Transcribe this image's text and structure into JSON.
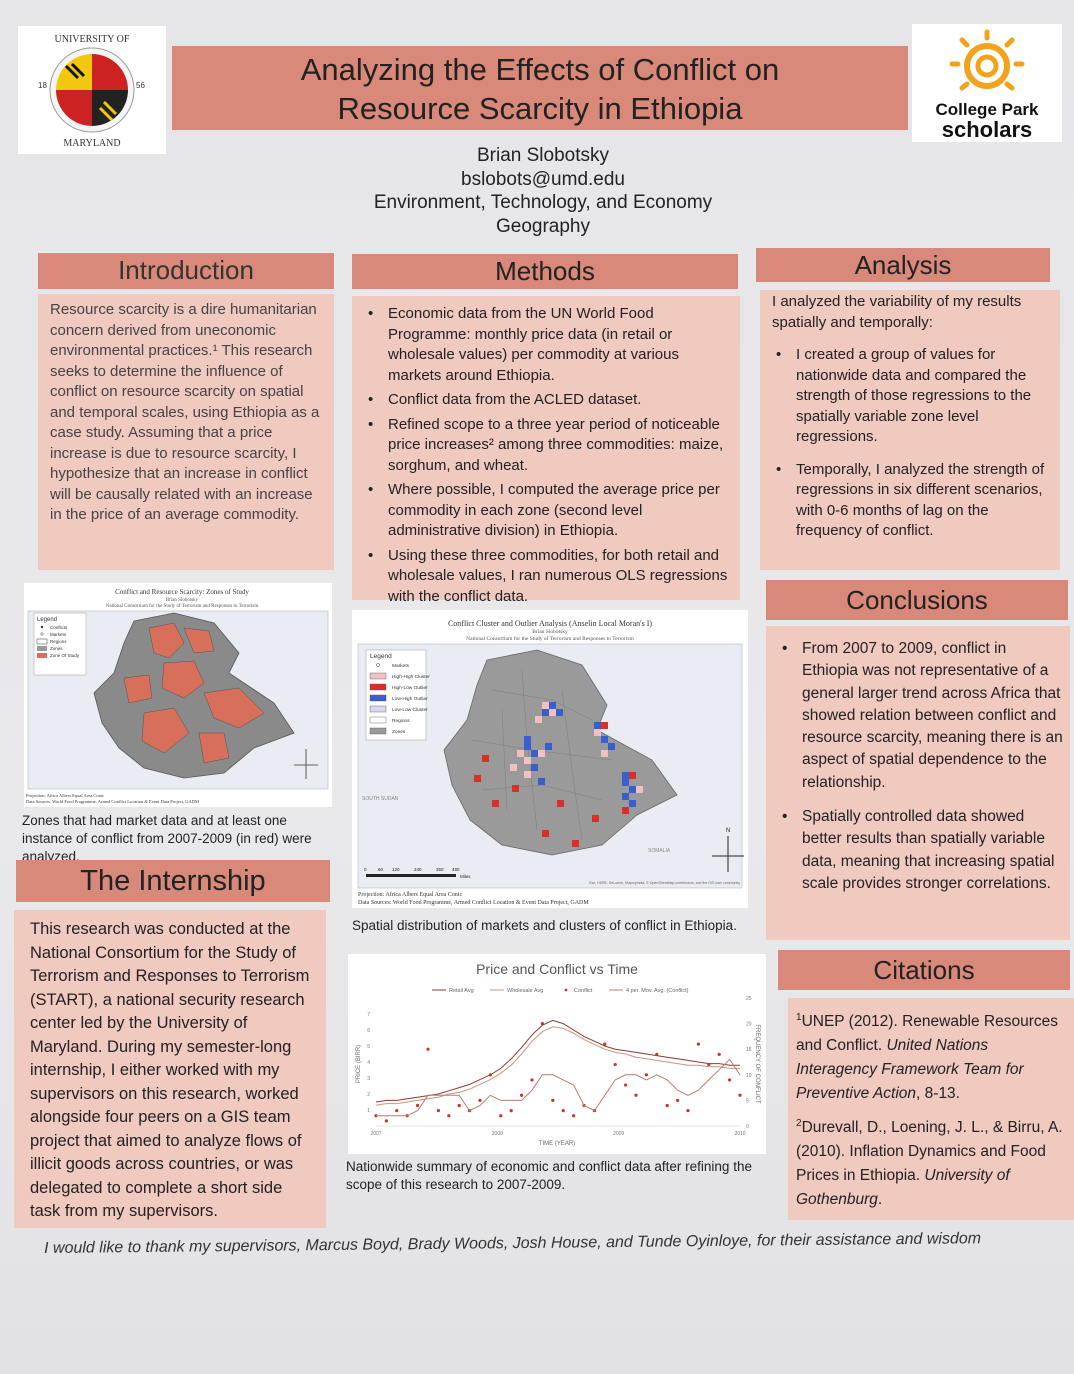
{
  "header": {
    "title_line1": "Analyzing the Effects of Conflict on",
    "title_line2": "Resource Scarcity in Ethiopia",
    "author": "Brian Slobotsky",
    "email": "bslobots@umd.edu",
    "program": "Environment, Technology, and Economy",
    "department": "Geography",
    "umd_logo": {
      "top": "UNIVERSITY OF",
      "bottom": "MARYLAND",
      "year_left": "18",
      "year_right": "56"
    },
    "scholars_logo": {
      "line1": "College Park",
      "line2": "scholars"
    }
  },
  "introduction": {
    "title": "Introduction",
    "text": "Resource scarcity is a dire humanitarian concern derived from uneconomic environmental practices.¹ This research seeks to determine the influence of conflict on resource scarcity on spatial and temporal scales, using Ethiopia as a case study. Assuming that a price increase is due to resource scarcity, I hypothesize that an increase in conflict will be causally related with an increase in the price of an average commodity.",
    "map_title": "Conflict and Resource Scarcity: Zones of Study",
    "map_subtitle": "Brian Slobotsky",
    "map_org": "National Consortium for the Study of Terrorism and Responses to Terrorism",
    "legend_title": "Legend",
    "legend_items": [
      "Conflicts",
      "Markets",
      "Regions",
      "Zones",
      "Zone Of Study"
    ],
    "projection": "Projection: Africa Albers Equal Area Conic",
    "sources": "Data Sources: World Food Programme, Armed Conflict Location & Event Data Project, GADM",
    "caption": "Zones that had market data and at least one instance of conflict from 2007-2009 (in red) were analyzed."
  },
  "internship": {
    "title": "The Internship",
    "text": "This research was conducted at the National Consortium for the Study of Terrorism and Responses to Terrorism (START), a national security research center led by the University of Maryland. During my semester-long internship, I either worked with my supervisors on this research, worked alongside four peers on a GIS team project that aimed to analyze flows of illicit goods across countries, or was delegated to complete a short side task from my supervisors."
  },
  "methods": {
    "title": "Methods",
    "bullets": [
      "Economic data from the UN World Food Programme: monthly price data (in retail or wholesale values) per commodity at various markets around Ethiopia.",
      "Conflict data from the ACLED dataset.",
      "Refined scope to a three year period of noticeable price increases² among three commodities: maize, sorghum, and wheat.",
      "Where possible, I computed the average price per commodity in each zone (second level administrative division) in Ethiopia.",
      "Using these three commodities, for both retail and wholesale values, I ran numerous OLS regressions with the conflict data."
    ],
    "map_title": "Conflict Cluster and Outlier Analysis (Anselin Local Moran's I)",
    "map_subtitle": "Brian Slobotsky",
    "map_org": "National Consortium for the Study of Terrorism and Responses to Terrorism",
    "legend_title": "Legend",
    "legend_items": [
      "Markets",
      "High-High Cluster",
      "High-Low Outlier",
      "Low-High Outlier",
      "Low-Low Cluster",
      "Regions",
      "Zones"
    ],
    "legend_colors": [
      "#ffffff",
      "#f2c0c0",
      "#d73027",
      "#3a5fcd",
      "#d9d9ee",
      "#ffffff",
      "#9a9a9a"
    ],
    "south_sudan": "SOUTH SUDAN",
    "somalia": "SOMALIA",
    "scale_labels": [
      "0",
      "60",
      "120",
      "240",
      "360",
      "480"
    ],
    "scale_unit": "Miles",
    "projection": "Projection: Africa Albers Equal Area Conic",
    "sources": "Data Sources: World Food Programme, Armed Conflict Location & Event Data Project, GADM",
    "credits": "Esri, HERE, DeLorme, MapmyIndia, © OpenStreetMap contributors, and the GIS user community",
    "caption": "Spatial distribution of markets and clusters of conflict in Ethiopia."
  },
  "chart_data": {
    "type": "line",
    "title": "Price and Conflict vs Time",
    "xlabel": "TIME (YEAR)",
    "ylabel": "PRICE (BIRR)",
    "y2label": "FREQUENCY OF CONFLICT",
    "x_ticks": [
      "2007",
      "2008",
      "2009",
      "2010"
    ],
    "y_ticks": [
      "1",
      "2",
      "3",
      "4",
      "5",
      "6",
      "7"
    ],
    "y2_ticks": [
      "0",
      "5",
      "10",
      "15",
      "20",
      "25"
    ],
    "legend_placement": "top",
    "x": [
      0,
      1,
      2,
      3,
      4,
      5,
      6,
      7,
      8,
      9,
      10,
      11,
      12,
      13,
      14,
      15,
      16,
      17,
      18,
      19,
      20,
      21,
      22,
      23,
      24,
      25,
      26,
      27,
      28,
      29,
      30,
      31,
      32,
      33,
      34,
      35
    ],
    "series": [
      {
        "name": "Retail Avg",
        "color": "#8b3a2f",
        "style": "line",
        "axis": "left",
        "values": [
          1.5,
          1.6,
          1.6,
          1.7,
          1.8,
          1.9,
          2.0,
          2.2,
          2.4,
          2.6,
          2.9,
          3.2,
          3.6,
          4.2,
          4.9,
          5.7,
          6.3,
          6.6,
          6.4,
          6.0,
          5.6,
          5.3,
          5.0,
          4.8,
          4.7,
          4.6,
          4.5,
          4.4,
          4.3,
          4.2,
          4.1,
          4.0,
          3.9,
          3.9,
          3.8,
          3.8
        ]
      },
      {
        "name": "Wholesale Avg",
        "color": "#c9957e",
        "style": "line",
        "axis": "left",
        "values": [
          1.3,
          1.4,
          1.4,
          1.5,
          1.6,
          1.7,
          1.8,
          2.0,
          2.1,
          2.3,
          2.6,
          2.9,
          3.3,
          3.8,
          4.5,
          5.3,
          5.9,
          6.2,
          6.1,
          5.8,
          5.4,
          5.1,
          4.8,
          4.6,
          4.5,
          4.3,
          4.2,
          4.1,
          4.0,
          3.9,
          3.8,
          3.8,
          3.7,
          3.7,
          3.6,
          3.6
        ]
      },
      {
        "name": "Conflict",
        "color": "#c0392b",
        "style": "points",
        "axis": "right",
        "values": [
          2,
          1,
          3,
          2,
          4,
          15,
          3,
          2,
          4,
          3,
          5,
          10,
          2,
          3,
          6,
          9,
          20,
          5,
          3,
          2,
          4,
          3,
          16,
          12,
          8,
          6,
          10,
          14,
          4,
          5,
          3,
          16,
          12,
          14,
          9,
          6
        ]
      },
      {
        "name": "4 per. Mov. Avg. (Conflict)",
        "color": "#b87d6f",
        "style": "line",
        "axis": "right",
        "values": [
          2,
          2,
          2,
          2,
          3,
          6,
          6,
          6,
          6,
          3,
          4,
          6,
          5,
          5,
          5,
          7,
          10,
          10,
          9,
          8,
          4,
          3,
          6,
          9,
          10,
          10,
          9,
          10,
          9,
          7,
          6,
          7,
          9,
          11,
          13,
          10
        ]
      }
    ],
    "ylim": [
      0,
      8
    ],
    "y2lim": [
      0,
      25
    ],
    "caption": "Nationwide summary of economic and conflict data after refining the scope of this research to 2007-2009."
  },
  "analysis": {
    "title": "Analysis",
    "intro": "I analyzed the variability of my results spatially and temporally:",
    "bullets": [
      "I created a group of values for nationwide data and compared the strength of those regressions to the spatially variable zone level regressions.",
      "Temporally, I analyzed the strength of regressions in six different scenarios, with 0-6 months of lag on the frequency of conflict."
    ]
  },
  "conclusions": {
    "title": "Conclusions",
    "bullets": [
      "From 2007 to 2009, conflict in Ethiopia was not representative of a general larger trend across Africa that showed relation between conflict and resource scarcity, meaning there is an aspect of spatial dependence to the relationship.",
      "Spatially controlled data showed better results than spatially variable data, meaning that increasing spatial scale provides stronger correlations."
    ]
  },
  "citations": {
    "title": "Citations",
    "c1_num": "1",
    "c1_plain": "UNEP (2012). Renewable Resources and Conflict.",
    "c1_italic": "United Nations Interagency Framework Team for Preventive Action",
    "c1_end": ", 8-13.",
    "c2_num": "2",
    "c2_plain": "Durevall, D., Loening, J. L., & Birru, A. (2010). Inflation Dynamics and Food Prices in Ethiopia.",
    "c2_italic": "University of Gothenburg",
    "c2_end": "."
  },
  "acknowledgment": "I would like to thank my supervisors, Marcus Boyd, Brady Woods, Josh House, and Tunde Oyinloye, for their assistance and wisdom"
}
